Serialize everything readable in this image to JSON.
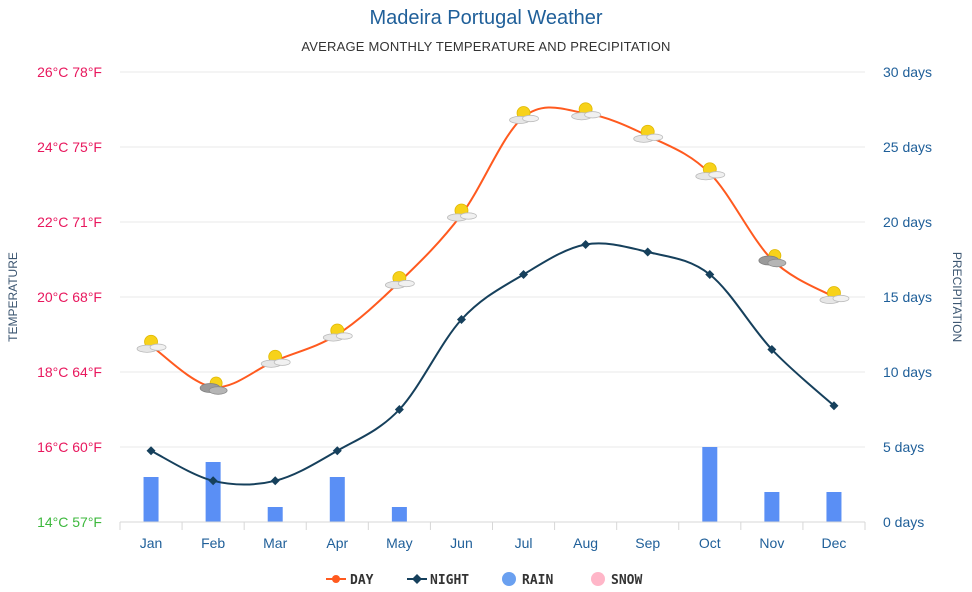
{
  "chart_data": {
    "type": "line",
    "title": "Madeira Portugal Weather",
    "subtitle": "AVERAGE MONTHLY TEMPERATURE AND PRECIPITATION",
    "ylabel_left": "TEMPERATURE",
    "ylabel_right": "PRECIPITATION",
    "categories": [
      "Jan",
      "Feb",
      "Mar",
      "Apr",
      "May",
      "Jun",
      "Jul",
      "Aug",
      "Sep",
      "Oct",
      "Nov",
      "Dec"
    ],
    "y_left_ticks": [
      {
        "value": 14,
        "label": "14°C 57°F",
        "color": "#3db83d"
      },
      {
        "value": 16,
        "label": "16°C 60°F",
        "color": "#e8175d"
      },
      {
        "value": 18,
        "label": "18°C 64°F",
        "color": "#e8175d"
      },
      {
        "value": 20,
        "label": "20°C 68°F",
        "color": "#e8175d"
      },
      {
        "value": 22,
        "label": "22°C 71°F",
        "color": "#e8175d"
      },
      {
        "value": 24,
        "label": "24°C 75°F",
        "color": "#e8175d"
      },
      {
        "value": 26,
        "label": "26°C 78°F",
        "color": "#e8175d"
      }
    ],
    "y_right_ticks": [
      {
        "value": 0,
        "label": "0 days"
      },
      {
        "value": 5,
        "label": "5 days"
      },
      {
        "value": 10,
        "label": "10 days"
      },
      {
        "value": 15,
        "label": "15 days"
      },
      {
        "value": 20,
        "label": "20 days"
      },
      {
        "value": 25,
        "label": "25 days"
      },
      {
        "value": 30,
        "label": "30 days"
      }
    ],
    "ylim_left": [
      14,
      26
    ],
    "ylim_right": [
      0,
      30
    ],
    "series": [
      {
        "name": "DAY",
        "color": "#ff5a1f",
        "values": [
          18.7,
          17.6,
          18.3,
          19.0,
          20.4,
          22.2,
          24.8,
          24.9,
          24.3,
          23.3,
          21.0,
          20.0
        ]
      },
      {
        "name": "NIGHT",
        "color": "#16405c",
        "values": [
          15.9,
          15.1,
          15.1,
          15.9,
          17.0,
          19.4,
          20.6,
          21.4,
          21.2,
          20.6,
          18.6,
          17.1
        ]
      },
      {
        "name": "RAIN",
        "color": "#5a8ff5",
        "values": [
          3,
          4,
          1,
          3,
          1,
          0,
          0,
          0,
          0,
          5,
          2,
          2
        ]
      },
      {
        "name": "SNOW",
        "color": "#ffb6c8",
        "values": [
          0,
          0,
          0,
          0,
          0,
          0,
          0,
          0,
          0,
          0,
          0,
          0
        ]
      }
    ],
    "weather_icons": [
      "partly-cloudy",
      "cloudy",
      "partly-cloudy",
      "partly-cloudy",
      "partly-cloudy",
      "partly-cloudy",
      "partly-cloudy",
      "partly-cloudy",
      "partly-cloudy",
      "partly-cloudy",
      "cloudy",
      "partly-cloudy"
    ],
    "legend": [
      {
        "label": "DAY",
        "marker": "line-dot",
        "color": "#ff5a1f"
      },
      {
        "label": "NIGHT",
        "marker": "line-diamond",
        "color": "#16405c"
      },
      {
        "label": "RAIN",
        "marker": "circle",
        "color": "#6aa0f0"
      },
      {
        "label": "SNOW",
        "marker": "circle",
        "color": "#ffb6c8"
      }
    ],
    "legend_position": "bottom",
    "grid": true
  }
}
